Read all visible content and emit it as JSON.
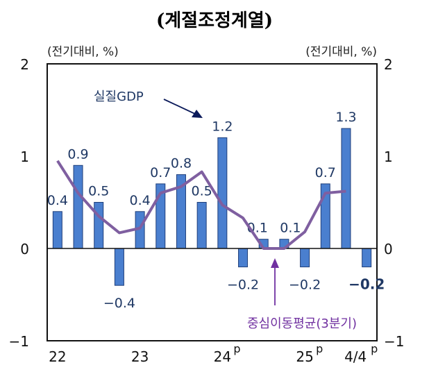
{
  "chart_data": {
    "type": "bar",
    "title": "(계절조정계열)",
    "ylabel_left": "(전기대비, %)",
    "ylabel_right": "(전기대비, %)",
    "ylim": [
      -1,
      2
    ],
    "yticks": [
      "2",
      "1",
      "0",
      "−1"
    ],
    "xtick_labels": [
      {
        "label": "22",
        "sup": "",
        "index": 0
      },
      {
        "label": "23",
        "sup": "",
        "index": 4
      },
      {
        "label": "24",
        "sup": "p",
        "index": 8
      },
      {
        "label": "25",
        "sup": "p",
        "index": 12
      },
      {
        "label": "4/4",
        "sup": "p",
        "index": 15
      }
    ],
    "grid": false,
    "series": [
      {
        "name": "실질GDP",
        "type": "bar",
        "color": "#4a7fcf",
        "values": [
          0.4,
          0.9,
          0.5,
          -0.4,
          0.4,
          0.7,
          0.8,
          0.5,
          1.2,
          -0.2,
          0.1,
          0.1,
          -0.2,
          0.7,
          1.3,
          -0.2
        ],
        "labels": [
          "0.4",
          "0.9",
          "0.5",
          "−0.4",
          "0.4",
          "0.7",
          "0.8",
          "0.5",
          "1.2",
          "−0.2",
          "0.1",
          "0.1",
          "−0.2",
          "0.7",
          "1.3",
          "−0.2"
        ]
      },
      {
        "name": "중심이동평균(3분기)",
        "type": "line",
        "color": "#7f5fa0",
        "values": [
          0.95,
          0.6,
          0.35,
          0.17,
          0.22,
          0.6,
          0.67,
          0.83,
          0.47,
          0.33,
          0.0,
          0.0,
          0.18,
          0.6,
          0.62,
          null
        ]
      }
    ],
    "annotations": [
      {
        "text": "실질GDP",
        "color": "#1f3864"
      },
      {
        "text": "중심이동평균(3분기)",
        "color": "#7030a0"
      }
    ]
  }
}
